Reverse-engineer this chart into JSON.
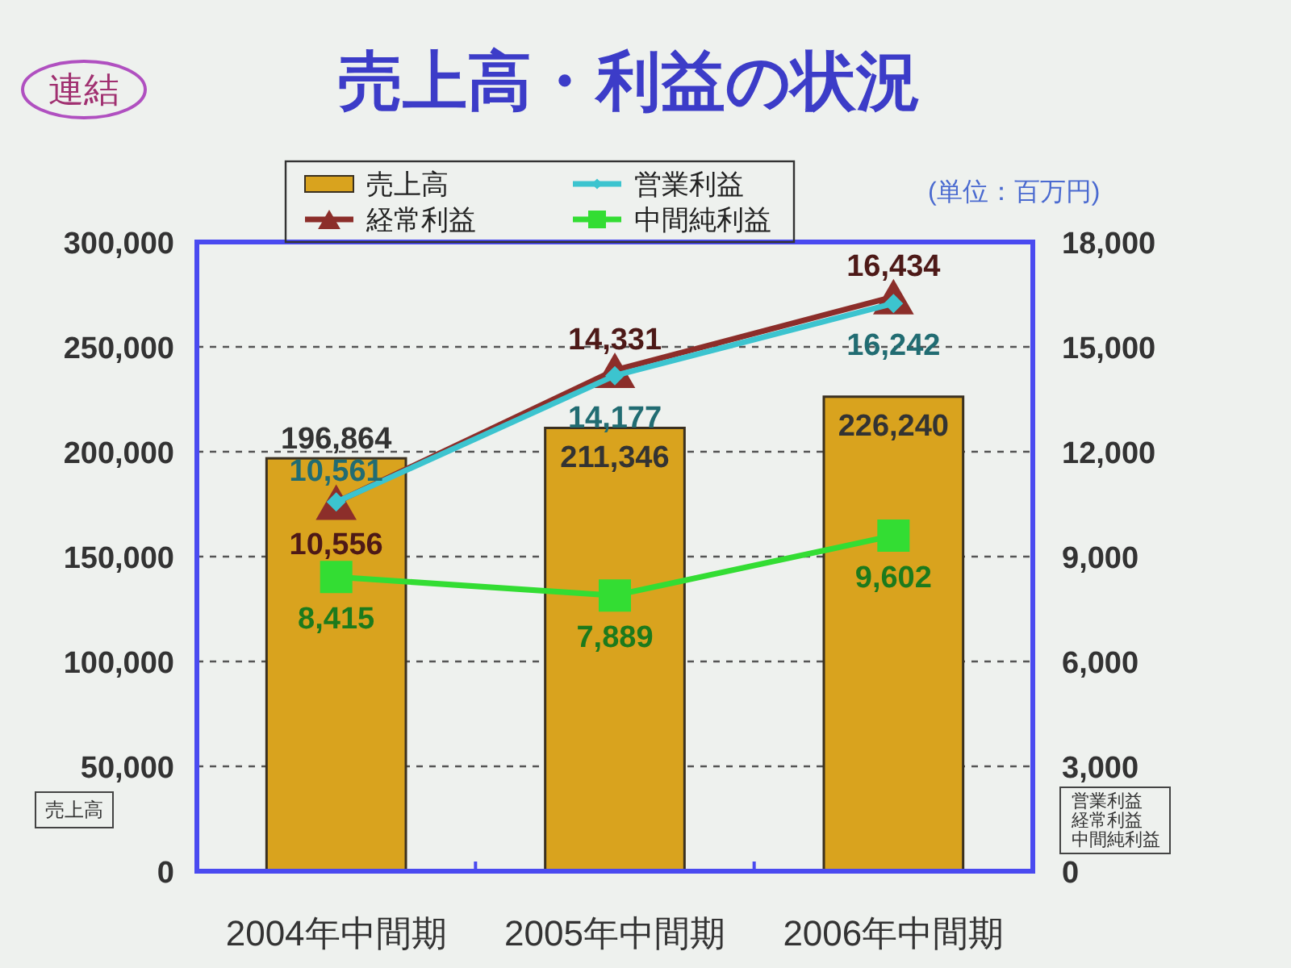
{
  "chart_data": {
    "type": "bar",
    "title": "売上高・利益の状況",
    "annotations": [
      "連結",
      "(単位：百万円)"
    ],
    "ylabel": "売上高",
    "y2label": "営業利益経常利益中間純利益",
    "categories": [
      "2004年中間期",
      "2005年中間期",
      "2006年中間期"
    ],
    "series": [
      {
        "name": "売上高",
        "color": "#d9a31e",
        "values": [
          196864,
          211346,
          226240
        ],
        "value_labels": [
          "196,864",
          "211,346",
          "226,240"
        ]
      },
      {
        "name": "営業利益",
        "type": "line",
        "axis": "y2",
        "color": "#3cc4cf",
        "marker": "diamond",
        "values": [
          10561,
          14177,
          16242
        ],
        "value_labels": [
          "10,561",
          "14,177",
          "16,242"
        ]
      },
      {
        "name": "経常利益",
        "type": "line",
        "axis": "y2",
        "color": "#8c2e2a",
        "marker": "triangle",
        "values": [
          10556,
          14331,
          16434
        ],
        "value_labels": [
          "10,556",
          "14,331",
          "16,434"
        ]
      },
      {
        "name": "中間純利益",
        "type": "line",
        "axis": "y2",
        "color": "#33dd33",
        "marker": "square",
        "values": [
          8415,
          7889,
          9602
        ],
        "value_labels": [
          "8,415",
          "7,889",
          "9,602"
        ]
      }
    ],
    "ylim": [
      0,
      300000
    ],
    "yticks": [
      0,
      {
        "value": 50000,
        "label": "50,000"
      },
      {
        "value": 100000,
        "label": "100,000"
      },
      {
        "value": 150000,
        "label": "150,000"
      },
      {
        "value": 200000,
        "label": "200,000"
      },
      {
        "value": 250000,
        "label": "250,000"
      },
      {
        "value": 300000,
        "label": "300,000"
      }
    ],
    "y2lim": [
      0,
      18000
    ],
    "y2ticks": [
      0,
      {
        "value": 3000,
        "label": "3,000"
      },
      {
        "value": 6000,
        "label": "6,000"
      },
      {
        "value": 9000,
        "label": "9,000"
      },
      {
        "value": 12000,
        "label": "12,000"
      },
      {
        "value": 15000,
        "label": "15,000"
      },
      {
        "value": 18000,
        "label": "18,000"
      }
    ],
    "grid": "y",
    "legend": "top"
  }
}
